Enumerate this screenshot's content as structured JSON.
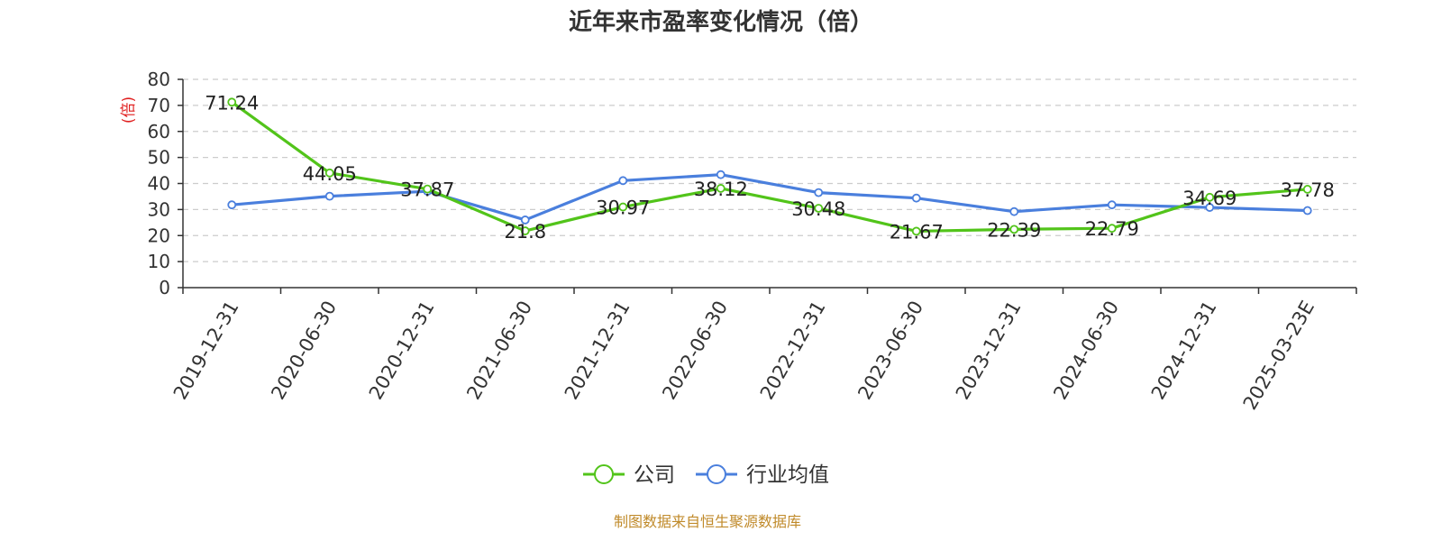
{
  "chart_data": {
    "type": "line",
    "title": "近年来市盈率变化情况（倍）",
    "ylabel": "(倍)",
    "ylim": [
      0,
      80
    ],
    "yticks": [
      0,
      10,
      20,
      30,
      40,
      50,
      60,
      70,
      80
    ],
    "grid": true,
    "legend_position": "bottom-center",
    "categories": [
      "2019-12-31",
      "2020-06-30",
      "2020-12-31",
      "2021-06-30",
      "2021-12-31",
      "2022-06-30",
      "2022-12-31",
      "2023-06-30",
      "2023-12-31",
      "2024-06-30",
      "2024-12-31",
      "2025-03-23E"
    ],
    "series": [
      {
        "name": "公司",
        "color": "#52c41a",
        "values": [
          71.24,
          44.05,
          37.87,
          21.8,
          30.97,
          38.12,
          30.48,
          21.67,
          22.39,
          22.79,
          34.69,
          37.78
        ],
        "data_labels": [
          "71.24",
          "44.05",
          "37.87",
          "21.8",
          "30.97",
          "38.12",
          "30.48",
          "21.67",
          "22.39",
          "22.79",
          "34.69",
          "37.78"
        ]
      },
      {
        "name": "行业均值",
        "color": "#4a7fdd",
        "values": [
          31.8,
          35.1,
          37.0,
          26.0,
          41.1,
          43.4,
          36.5,
          34.4,
          29.2,
          31.8,
          30.8,
          29.6
        ]
      }
    ],
    "source": "制图数据来自恒生聚源数据库",
    "source_color": "#c08a2a",
    "ylabel_color": "#e02020"
  }
}
